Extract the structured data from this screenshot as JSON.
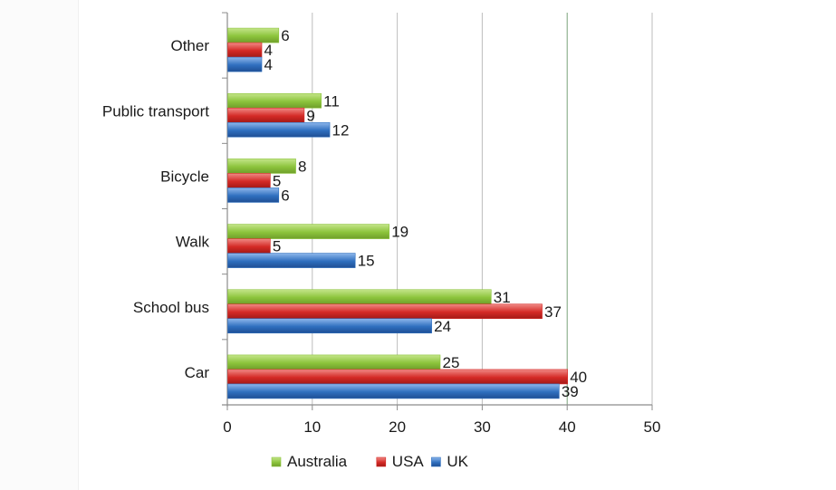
{
  "chart_data": {
    "type": "bar",
    "orientation": "horizontal",
    "categories": [
      "Car",
      "School bus",
      "Walk",
      "Bicycle",
      "Public transport",
      "Other"
    ],
    "series": [
      {
        "name": "Australia",
        "color": "#8cc43c",
        "values": [
          25,
          31,
          19,
          8,
          11,
          6
        ]
      },
      {
        "name": "USA",
        "color": "#d42a26",
        "values": [
          40,
          37,
          5,
          5,
          9,
          4
        ]
      },
      {
        "name": "UK",
        "color": "#2f6fbf",
        "values": [
          39,
          24,
          15,
          6,
          12,
          4
        ]
      }
    ],
    "xlim": [
      0,
      50
    ],
    "x_ticks": [
      0,
      10,
      20,
      30,
      40,
      50
    ],
    "grid": "vertical",
    "legend_position": "bottom",
    "title": "",
    "xlabel": "",
    "ylabel": ""
  }
}
